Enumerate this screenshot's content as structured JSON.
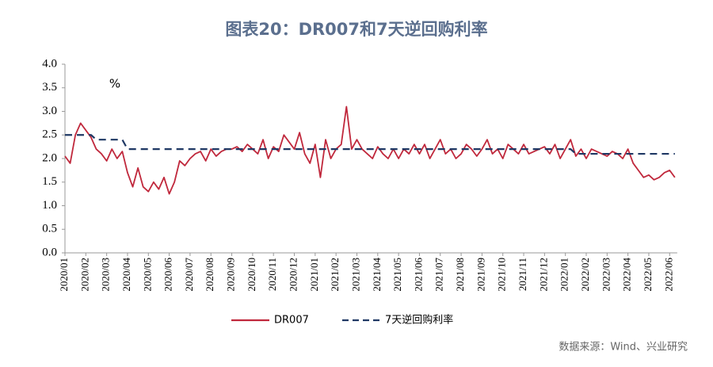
{
  "chart_data": {
    "type": "line",
    "title": "图表20：DR007和7天逆回购利率",
    "y_label": "%",
    "source": "数据来源：Wind、兴业研究",
    "categories": [
      "2020/01",
      null,
      null,
      null,
      "2020/02",
      null,
      null,
      null,
      "2020/03",
      null,
      null,
      null,
      "2020/04",
      null,
      null,
      null,
      "2020/05",
      null,
      null,
      null,
      "2020/06",
      null,
      null,
      null,
      "2020/07",
      null,
      null,
      null,
      "2020/08",
      null,
      null,
      null,
      "2020/09",
      null,
      null,
      null,
      "2020/10",
      null,
      null,
      null,
      "2020/11",
      null,
      null,
      null,
      "2020/12",
      null,
      null,
      null,
      "2021/01",
      null,
      null,
      null,
      "2021/02",
      null,
      null,
      null,
      "2021/03",
      null,
      null,
      null,
      "2021/04",
      null,
      null,
      null,
      "2021/05",
      null,
      null,
      null,
      "2021/06",
      null,
      null,
      null,
      "2021/07",
      null,
      null,
      null,
      "2021/08",
      null,
      null,
      null,
      "2021/09",
      null,
      null,
      null,
      "2021/10",
      null,
      null,
      null,
      "2021/11",
      null,
      null,
      null,
      "2021/12",
      null,
      null,
      null,
      "2022/01",
      null,
      null,
      null,
      "2022/02",
      null,
      null,
      null,
      "2022/03",
      null,
      null,
      null,
      "2022/04",
      null,
      null,
      null,
      "2022/05",
      null,
      null,
      null,
      "2022/06",
      null
    ],
    "series": [
      {
        "name": "DR007",
        "color": "#c0283c",
        "dash": false,
        "values": [
          2.05,
          1.9,
          2.5,
          2.75,
          2.6,
          2.45,
          2.2,
          2.1,
          1.95,
          2.2,
          2.0,
          2.15,
          1.7,
          1.4,
          1.8,
          1.4,
          1.3,
          1.5,
          1.35,
          1.6,
          1.25,
          1.5,
          1.95,
          1.85,
          2.0,
          2.1,
          2.15,
          1.95,
          2.2,
          2.05,
          2.15,
          2.2,
          2.2,
          2.25,
          2.15,
          2.3,
          2.2,
          2.1,
          2.4,
          2.0,
          2.25,
          2.15,
          2.5,
          2.35,
          2.2,
          2.55,
          2.1,
          1.9,
          2.3,
          1.6,
          2.4,
          2.0,
          2.2,
          2.3,
          3.1,
          2.2,
          2.4,
          2.2,
          2.1,
          2.0,
          2.25,
          2.1,
          2.0,
          2.2,
          2.0,
          2.2,
          2.1,
          2.3,
          2.1,
          2.3,
          2.0,
          2.2,
          2.4,
          2.1,
          2.2,
          2.0,
          2.1,
          2.3,
          2.2,
          2.05,
          2.2,
          2.4,
          2.1,
          2.2,
          2.0,
          2.3,
          2.2,
          2.1,
          2.3,
          2.1,
          2.15,
          2.2,
          2.25,
          2.1,
          2.3,
          2.0,
          2.2,
          2.4,
          2.05,
          2.2,
          2.0,
          2.2,
          2.15,
          2.1,
          2.05,
          2.15,
          2.1,
          2.0,
          2.2,
          1.9,
          1.75,
          1.6,
          1.65,
          1.55,
          1.6,
          1.7,
          1.75,
          1.6
        ]
      },
      {
        "name": "7天逆回购利率",
        "color": "#1f3864",
        "dash": true,
        "values": [
          2.5,
          2.5,
          2.5,
          2.5,
          2.5,
          2.5,
          2.4,
          2.4,
          2.4,
          2.4,
          2.4,
          2.4,
          2.2,
          2.2,
          2.2,
          2.2,
          2.2,
          2.2,
          2.2,
          2.2,
          2.2,
          2.2,
          2.2,
          2.2,
          2.2,
          2.2,
          2.2,
          2.2,
          2.2,
          2.2,
          2.2,
          2.2,
          2.2,
          2.2,
          2.2,
          2.2,
          2.2,
          2.2,
          2.2,
          2.2,
          2.2,
          2.2,
          2.2,
          2.2,
          2.2,
          2.2,
          2.2,
          2.2,
          2.2,
          2.2,
          2.2,
          2.2,
          2.2,
          2.2,
          2.2,
          2.2,
          2.2,
          2.2,
          2.2,
          2.2,
          2.2,
          2.2,
          2.2,
          2.2,
          2.2,
          2.2,
          2.2,
          2.2,
          2.2,
          2.2,
          2.2,
          2.2,
          2.2,
          2.2,
          2.2,
          2.2,
          2.2,
          2.2,
          2.2,
          2.2,
          2.2,
          2.2,
          2.2,
          2.2,
          2.2,
          2.2,
          2.2,
          2.2,
          2.2,
          2.2,
          2.2,
          2.2,
          2.2,
          2.2,
          2.2,
          2.2,
          2.2,
          2.2,
          2.1,
          2.1,
          2.1,
          2.1,
          2.1,
          2.1,
          2.1,
          2.1,
          2.1,
          2.1,
          2.1,
          2.1,
          2.1,
          2.1,
          2.1,
          2.1,
          2.1,
          2.1,
          2.1,
          2.1
        ]
      }
    ],
    "ylim": [
      0,
      4
    ],
    "yticks": [
      {
        "value": 0,
        "label": "0.0"
      },
      0.5,
      {
        "value": 1,
        "label": "1.0"
      },
      1.5,
      {
        "value": 2,
        "label": "2.0"
      },
      2.5,
      {
        "value": 3,
        "label": "3.0"
      },
      3.5,
      {
        "value": 4,
        "label": "4.0"
      }
    ],
    "grid": false,
    "legend": "bottom"
  }
}
